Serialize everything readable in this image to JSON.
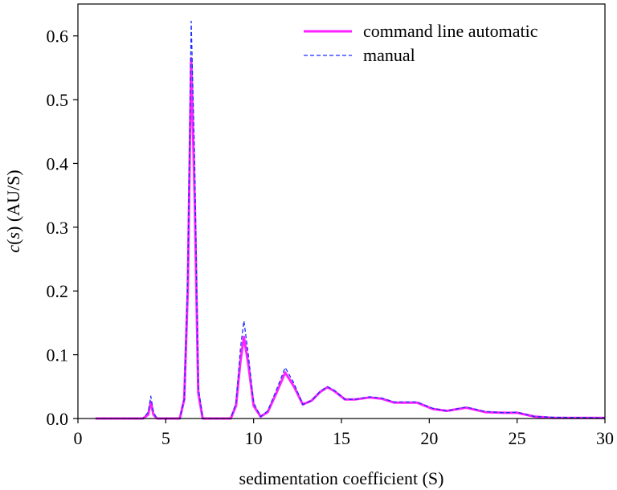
{
  "chart_data": {
    "type": "line",
    "xlabel": "sedimentation coefficient (S)",
    "ylabel_parts": [
      "c(",
      "s",
      ") (AU/S)"
    ],
    "ylabel_italic": [
      "c",
      "s"
    ],
    "xlim": [
      0,
      30
    ],
    "ylim": [
      0,
      0.65
    ],
    "xticks": [
      "0",
      "5",
      "10",
      "15",
      "20",
      "25",
      "30"
    ],
    "xtick_values": [
      0,
      5,
      10,
      15,
      20,
      25,
      30
    ],
    "yticks": [
      "0.0",
      "0.1",
      "0.2",
      "0.3",
      "0.4",
      "0.5",
      "0.6"
    ],
    "ytick_values": [
      0,
      0.1,
      0.2,
      0.3,
      0.4,
      0.5,
      0.6
    ],
    "grid": false,
    "legend_position": "top-right",
    "series": [
      {
        "name": "command line automatic",
        "color": "#ff22ff",
        "style": "solid",
        "points": [
          [
            1,
            0
          ],
          [
            3.7,
            0
          ],
          [
            4.0,
            0.006
          ],
          [
            4.15,
            0.026
          ],
          [
            4.3,
            0.006
          ],
          [
            4.5,
            0
          ],
          [
            5.8,
            0
          ],
          [
            6.05,
            0.03
          ],
          [
            6.25,
            0.2
          ],
          [
            6.45,
            0.565
          ],
          [
            6.65,
            0.34
          ],
          [
            6.85,
            0.04
          ],
          [
            7.1,
            0
          ],
          [
            8.7,
            0
          ],
          [
            9.0,
            0.02
          ],
          [
            9.25,
            0.09
          ],
          [
            9.45,
            0.128
          ],
          [
            9.7,
            0.085
          ],
          [
            10.0,
            0.02
          ],
          [
            10.4,
            0.003
          ],
          [
            10.8,
            0.01
          ],
          [
            11.3,
            0.04
          ],
          [
            11.8,
            0.072
          ],
          [
            12.3,
            0.05
          ],
          [
            12.8,
            0.022
          ],
          [
            13.3,
            0.028
          ],
          [
            13.8,
            0.042
          ],
          [
            14.2,
            0.049
          ],
          [
            14.6,
            0.043
          ],
          [
            15.2,
            0.03
          ],
          [
            15.8,
            0.03
          ],
          [
            16.6,
            0.033
          ],
          [
            17.3,
            0.031
          ],
          [
            18.0,
            0.025
          ],
          [
            18.8,
            0.025
          ],
          [
            19.3,
            0.025
          ],
          [
            20.2,
            0.015
          ],
          [
            21.0,
            0.012
          ],
          [
            22.1,
            0.017
          ],
          [
            23.2,
            0.01
          ],
          [
            24.3,
            0.009
          ],
          [
            25.0,
            0.009
          ],
          [
            26.0,
            0.003
          ],
          [
            27.0,
            0.001
          ],
          [
            30,
            0.001
          ]
        ]
      },
      {
        "name": "manual",
        "color": "#1a2cff",
        "style": "dashed",
        "points": [
          [
            1,
            0
          ],
          [
            3.7,
            0
          ],
          [
            4.0,
            0.01
          ],
          [
            4.15,
            0.035
          ],
          [
            4.3,
            0.01
          ],
          [
            4.5,
            0
          ],
          [
            5.8,
            0
          ],
          [
            6.05,
            0.03
          ],
          [
            6.25,
            0.22
          ],
          [
            6.45,
            0.623
          ],
          [
            6.65,
            0.4
          ],
          [
            6.85,
            0.05
          ],
          [
            7.1,
            0
          ],
          [
            8.7,
            0
          ],
          [
            9.0,
            0.025
          ],
          [
            9.25,
            0.11
          ],
          [
            9.45,
            0.153
          ],
          [
            9.7,
            0.1
          ],
          [
            10.0,
            0.025
          ],
          [
            10.4,
            0.003
          ],
          [
            10.8,
            0.012
          ],
          [
            11.3,
            0.045
          ],
          [
            11.8,
            0.08
          ],
          [
            12.3,
            0.055
          ],
          [
            12.8,
            0.022
          ],
          [
            13.3,
            0.028
          ],
          [
            13.8,
            0.043
          ],
          [
            14.2,
            0.05
          ],
          [
            14.6,
            0.044
          ],
          [
            15.2,
            0.03
          ],
          [
            15.8,
            0.03
          ],
          [
            16.6,
            0.034
          ],
          [
            17.3,
            0.032
          ],
          [
            18.0,
            0.026
          ],
          [
            18.8,
            0.026
          ],
          [
            19.3,
            0.026
          ],
          [
            20.2,
            0.016
          ],
          [
            21.0,
            0.012
          ],
          [
            22.1,
            0.018
          ],
          [
            23.2,
            0.011
          ],
          [
            24.3,
            0.009
          ],
          [
            25.0,
            0.01
          ],
          [
            26.0,
            0.003
          ],
          [
            27.0,
            0.002
          ],
          [
            30,
            0.001
          ]
        ]
      }
    ]
  }
}
